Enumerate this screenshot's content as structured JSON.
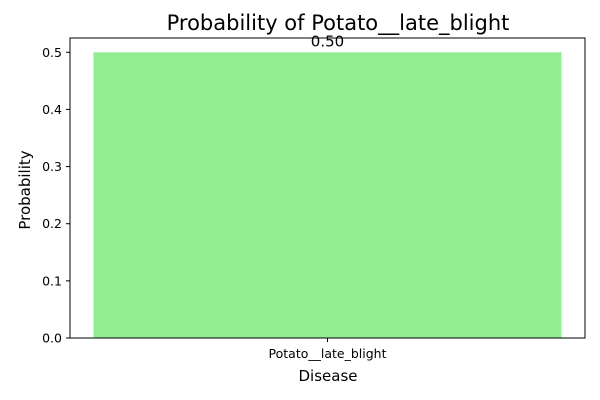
{
  "chart_data": {
    "type": "bar",
    "title": "Probability of Potato__late_blight",
    "xlabel": "Disease",
    "ylabel": "Probability",
    "categories": [
      "Potato__late_blight"
    ],
    "values": [
      0.5
    ],
    "value_labels": [
      "0.50"
    ],
    "ylim": [
      0,
      0.525
    ],
    "yticks": [
      0.0,
      0.1,
      0.2,
      0.3,
      0.4,
      0.5
    ],
    "ytick_labels": [
      "0.0",
      "0.1",
      "0.2",
      "0.3",
      "0.4",
      "0.5"
    ],
    "grid": false,
    "legend": "none",
    "bar_color": "#90ee90"
  }
}
